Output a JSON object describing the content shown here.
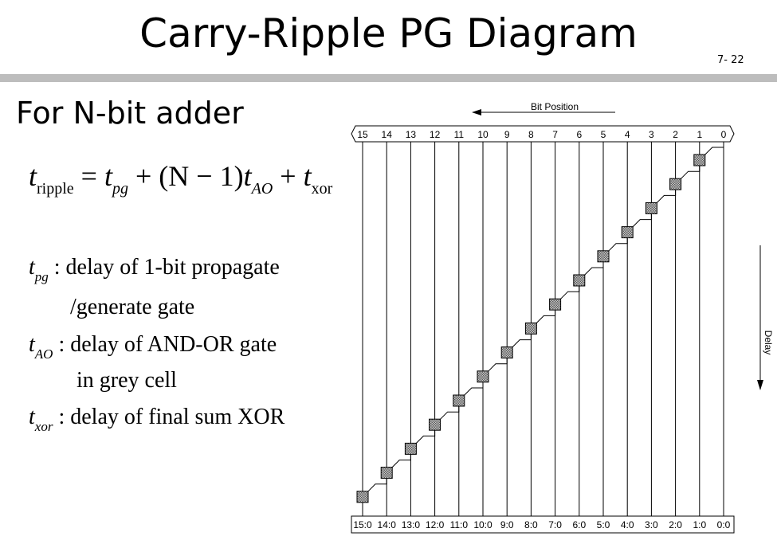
{
  "slide": {
    "title": "Carry-Ripple PG Diagram",
    "page_number": "7-  22",
    "subtitle": "For N-bit adder"
  },
  "equation": {
    "t": "t",
    "ripple_sub": "ripple",
    "eq1": " = ",
    "pg_sub": "pg",
    "mid": " + (N − 1)",
    "ao_sub": "AO",
    "plus": " + ",
    "xor_sub": "xor"
  },
  "definitions": [
    {
      "t": "t",
      "sub": "pg",
      "text": " : delay of 1-bit propagate",
      "cont": "/generate gate"
    },
    {
      "t": "t",
      "sub": "AO",
      "text": " : delay of AND-OR gate",
      "cont": "in grey cell"
    },
    {
      "t": "t",
      "sub": "xor",
      "text": " : delay of final sum XOR"
    }
  ],
  "diagram": {
    "bit_position_label": "Bit Position",
    "delay_label": "Delay",
    "bits": [
      "15",
      "14",
      "13",
      "12",
      "11",
      "10",
      "9",
      "8",
      "7",
      "6",
      "5",
      "4",
      "3",
      "2",
      "1",
      "0"
    ],
    "groups": [
      "15:0",
      "14:0",
      "13:0",
      "12:0",
      "11:0",
      "10:0",
      "9:0",
      "8:0",
      "7:0",
      "6:0",
      "5:0",
      "4:0",
      "3:0",
      "2:0",
      "1:0",
      "0:0"
    ],
    "cell_fill": "#b0b0b0"
  }
}
